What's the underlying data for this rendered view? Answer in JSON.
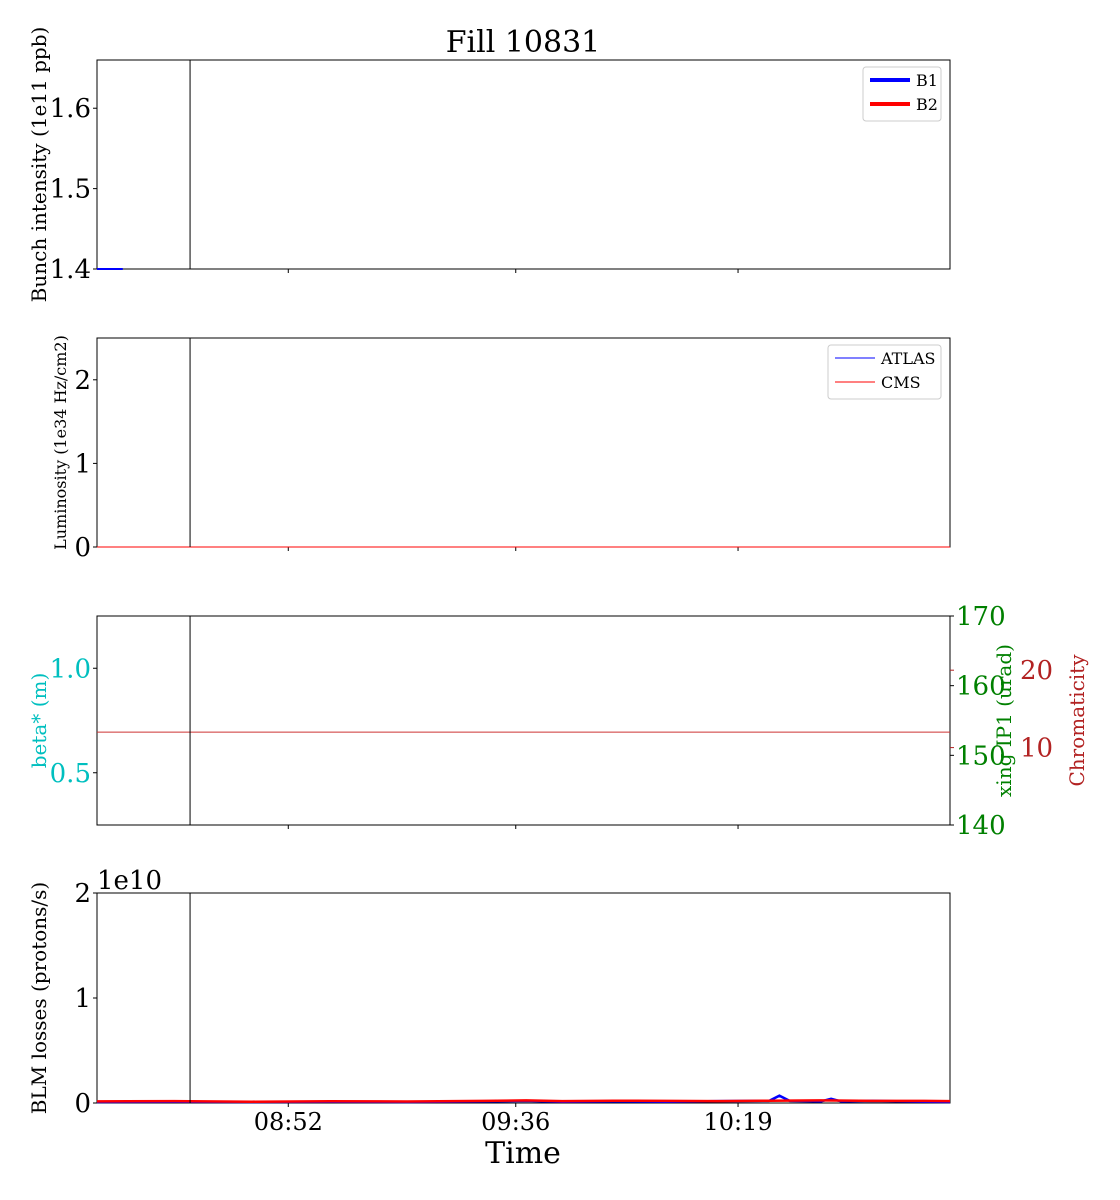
{
  "chart_data": {
    "type": "line",
    "title": "Fill 10831",
    "xlabel": "Time",
    "x_range": [
      "08:15",
      "11:00"
    ],
    "x_ticks": [
      "08:52",
      "09:36",
      "10:19"
    ],
    "marker_time": "08:33",
    "panels": [
      {
        "name": "intensity",
        "ylabel": "Bunch intensity (1e11 ppb)",
        "ylim": [
          1.4,
          1.66
        ],
        "yticks": [
          1.4,
          1.5,
          1.6
        ],
        "ytick_labels": [
          "1.4",
          "1.5",
          "1.6"
        ],
        "legend": {
          "position": "top-right",
          "entries": [
            "B1",
            "B2"
          ]
        },
        "series": [
          {
            "name": "B1",
            "color": "#0000ff",
            "x": [
              "08:15",
              "08:20"
            ],
            "values": [
              1.4,
              1.4
            ]
          },
          {
            "name": "B2",
            "color": "#ff0000",
            "x": [],
            "values": []
          }
        ]
      },
      {
        "name": "luminosity",
        "ylabel": "Luminosity (1e34 Hz/cm2)",
        "ylim": [
          0,
          2.5
        ],
        "yticks": [
          0,
          1,
          2
        ],
        "ytick_labels": [
          "0",
          "1",
          "2"
        ],
        "legend": {
          "position": "top-right",
          "entries": [
            "ATLAS",
            "CMS"
          ]
        },
        "series": [
          {
            "name": "ATLAS",
            "color": "#0000ff",
            "x": [
              "08:15",
              "11:00"
            ],
            "values": [
              0,
              0
            ]
          },
          {
            "name": "CMS",
            "color": "#ff0000",
            "x": [
              "08:15",
              "11:00"
            ],
            "values": [
              0,
              0
            ]
          }
        ]
      },
      {
        "name": "optics",
        "ylabel": "beta* (m)",
        "ylabel_color": "#00bfbf",
        "ylim": [
          0.25,
          1.25
        ],
        "yticks": [
          0.5,
          1.0
        ],
        "ytick_labels": [
          "0.5",
          "1.0"
        ],
        "right_axes": [
          {
            "label": "xing IP1 (urad)",
            "color": "#008000",
            "ylim": [
              140,
              170
            ],
            "yticks": [
              140,
              150,
              160,
              170
            ],
            "ytick_labels": [
              "140",
              "150",
              "160",
              "170"
            ]
          },
          {
            "label": "Chromaticity",
            "color": "#b22222",
            "ylim": [
              0,
              27
            ],
            "yticks": [
              10,
              20
            ],
            "ytick_labels": [
              "10",
              "20"
            ]
          }
        ],
        "series": [
          {
            "axis": "Chromaticity",
            "color": "#cd3333",
            "x": [
              "08:15",
              "11:00"
            ],
            "values": [
              12,
              12
            ]
          }
        ]
      },
      {
        "name": "losses",
        "ylabel": "BLM losses (protons/s)",
        "offset_label": "1e10",
        "ylim": [
          0,
          2
        ],
        "yticks": [
          0,
          1,
          2
        ],
        "ytick_labels": [
          "0",
          "1",
          "2"
        ],
        "series": [
          {
            "name": "B1",
            "color": "#0000ff",
            "x": [
              "08:15",
              "08:30",
              "08:45",
              "09:00",
              "09:15",
              "09:30",
              "09:38",
              "09:45",
              "09:55",
              "10:05",
              "10:15",
              "10:25",
              "10:27",
              "10:29",
              "10:35",
              "10:37",
              "10:39",
              "10:45",
              "10:55",
              "11:00"
            ],
            "values": [
              0.01,
              0.012,
              0.01,
              0.012,
              0.01,
              0.015,
              0.02,
              0.012,
              0.015,
              0.012,
              0.018,
              0.02,
              0.07,
              0.02,
              0.015,
              0.04,
              0.015,
              0.02,
              0.012,
              0.01
            ]
          },
          {
            "name": "B2",
            "color": "#ff0000",
            "x": [
              "08:15",
              "08:30",
              "08:45",
              "09:00",
              "09:15",
              "09:30",
              "09:38",
              "09:45",
              "09:55",
              "10:05",
              "10:15",
              "10:25",
              "10:35",
              "10:45",
              "10:55",
              "11:00"
            ],
            "values": [
              0.015,
              0.018,
              0.012,
              0.016,
              0.014,
              0.02,
              0.025,
              0.018,
              0.022,
              0.02,
              0.018,
              0.022,
              0.025,
              0.02,
              0.02,
              0.018
            ]
          }
        ]
      }
    ]
  }
}
